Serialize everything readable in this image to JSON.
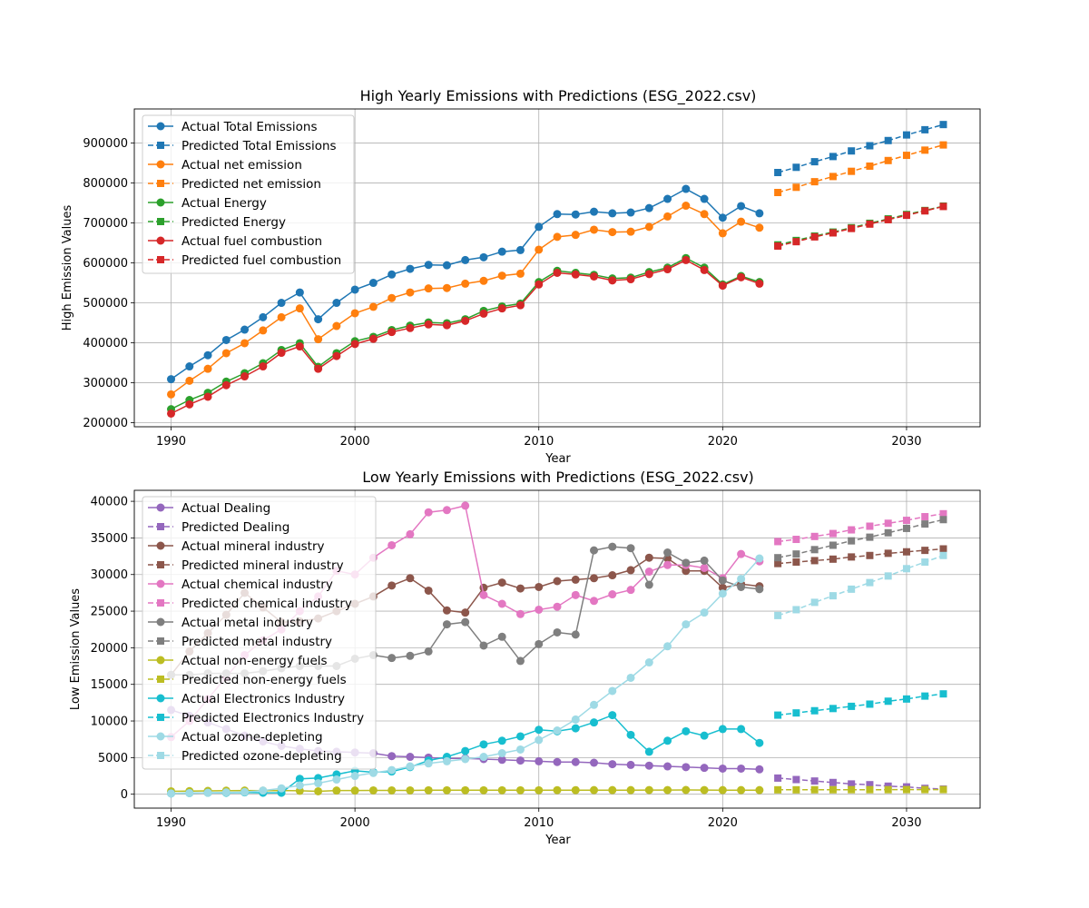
{
  "chart_data": [
    {
      "type": "line",
      "title": "High Yearly Emissions with Predictions (ESG_2022.csv)",
      "xlabel": "Year",
      "ylabel": "High Emission Values",
      "xlim": [
        1988,
        2034
      ],
      "ylim": [
        190000,
        985000
      ],
      "xticks": [
        1990,
        2000,
        2010,
        2020,
        2030
      ],
      "yticks": [
        200000,
        300000,
        400000,
        500000,
        600000,
        700000,
        800000,
        900000
      ],
      "grid": true,
      "legend": "top-left",
      "actual_x": [
        1990,
        1991,
        1992,
        1993,
        1994,
        1995,
        1996,
        1997,
        1998,
        1999,
        2000,
        2001,
        2002,
        2003,
        2004,
        2005,
        2006,
        2007,
        2008,
        2009,
        2010,
        2011,
        2012,
        2013,
        2014,
        2015,
        2016,
        2017,
        2018,
        2019,
        2020,
        2021,
        2022
      ],
      "predicted_x": [
        2023,
        2024,
        2025,
        2026,
        2027,
        2028,
        2029,
        2030,
        2031,
        2032
      ],
      "series": [
        {
          "name": "Total Emissions",
          "color": "#1f77b4",
          "actual": [
            309000,
            341000,
            369000,
            407000,
            433000,
            464000,
            500000,
            526000,
            459000,
            500000,
            533000,
            550000,
            571000,
            585000,
            595000,
            594000,
            607000,
            614000,
            628000,
            632000,
            690000,
            722000,
            721000,
            728000,
            724000,
            726000,
            737000,
            760000,
            785000,
            760000,
            713000,
            742000,
            724000
          ],
          "predicted": [
            826000,
            839000,
            853000,
            866000,
            880000,
            893000,
            906000,
            920000,
            933000,
            946000
          ]
        },
        {
          "name": "net emission",
          "color": "#ff7f0e",
          "actual": [
            271000,
            305000,
            335000,
            374000,
            399000,
            431000,
            464000,
            486000,
            409000,
            442000,
            474000,
            490000,
            512000,
            526000,
            536000,
            537000,
            548000,
            555000,
            568000,
            573000,
            633000,
            665000,
            670000,
            683000,
            677000,
            678000,
            690000,
            716000,
            743000,
            722000,
            674000,
            703000,
            688000
          ],
          "predicted": [
            776000,
            789000,
            803000,
            816000,
            829000,
            842000,
            856000,
            869000,
            882000,
            895000
          ]
        },
        {
          "name": "Energy",
          "color": "#2ca02c",
          "actual": [
            234000,
            257000,
            275000,
            303000,
            324000,
            349000,
            382000,
            399000,
            340000,
            374000,
            404000,
            415000,
            432000,
            443000,
            451000,
            449000,
            459000,
            480000,
            491000,
            498000,
            552000,
            580000,
            575000,
            570000,
            561000,
            563000,
            577000,
            588000,
            612000,
            588000,
            546000,
            567000,
            552000
          ],
          "predicted": [
            645000,
            656000,
            667000,
            677000,
            688000,
            699000,
            710000,
            721000,
            731000,
            742000
          ]
        },
        {
          "name": "fuel combustion",
          "color": "#d62728",
          "actual": [
            223000,
            246000,
            265000,
            294000,
            316000,
            341000,
            375000,
            391000,
            335000,
            367000,
            397000,
            410000,
            427000,
            437000,
            446000,
            444000,
            455000,
            473000,
            486000,
            494000,
            546000,
            575000,
            571000,
            566000,
            556000,
            559000,
            572000,
            584000,
            607000,
            582000,
            543000,
            564000,
            548000
          ],
          "predicted": [
            642000,
            653000,
            665000,
            675000,
            686000,
            697000,
            708000,
            719000,
            730000,
            741000
          ]
        }
      ],
      "legend_entries": [
        {
          "label": "Actual Total Emissions",
          "color": "#1f77b4",
          "style": "actual"
        },
        {
          "label": "Predicted Total Emissions",
          "color": "#1f77b4",
          "style": "predicted"
        },
        {
          "label": "Actual net emission",
          "color": "#ff7f0e",
          "style": "actual"
        },
        {
          "label": "Predicted net emission",
          "color": "#ff7f0e",
          "style": "predicted"
        },
        {
          "label": "Actual Energy",
          "color": "#2ca02c",
          "style": "actual"
        },
        {
          "label": "Predicted Energy",
          "color": "#2ca02c",
          "style": "predicted"
        },
        {
          "label": "Actual fuel combustion",
          "color": "#d62728",
          "style": "actual"
        },
        {
          "label": "Predicted fuel combustion",
          "color": "#d62728",
          "style": "predicted"
        }
      ]
    },
    {
      "type": "line",
      "title": "Low Yearly Emissions with Predictions (ESG_2022.csv)",
      "xlabel": "Year",
      "ylabel": "Low Emission Values",
      "xlim": [
        1988,
        2034
      ],
      "ylim": [
        -1900,
        41500
      ],
      "xticks": [
        1990,
        2000,
        2010,
        2020,
        2030
      ],
      "yticks": [
        0,
        5000,
        10000,
        15000,
        20000,
        25000,
        30000,
        35000,
        40000
      ],
      "grid": true,
      "legend": "top-left",
      "actual_x": [
        1990,
        1991,
        1992,
        1993,
        1994,
        1995,
        1996,
        1997,
        1998,
        1999,
        2000,
        2001,
        2002,
        2003,
        2004,
        2005,
        2006,
        2007,
        2008,
        2009,
        2010,
        2011,
        2012,
        2013,
        2014,
        2015,
        2016,
        2017,
        2018,
        2019,
        2020,
        2021,
        2022
      ],
      "predicted_x": [
        2023,
        2024,
        2025,
        2026,
        2027,
        2028,
        2029,
        2030,
        2031,
        2032
      ],
      "series": [
        {
          "name": "Dealing",
          "color": "#9467bd",
          "actual": [
            11500,
            10700,
            9800,
            8900,
            8000,
            7200,
            6600,
            6200,
            5900,
            5800,
            5700,
            5600,
            5200,
            5100,
            5000,
            4900,
            4900,
            4800,
            4700,
            4600,
            4500,
            4400,
            4400,
            4300,
            4100,
            4000,
            3900,
            3800,
            3700,
            3600,
            3500,
            3500,
            3400
          ],
          "predicted": [
            2200,
            2000,
            1800,
            1600,
            1400,
            1300,
            1100,
            1000,
            800,
            700
          ]
        },
        {
          "name": "mineral industry",
          "color": "#8c564b",
          "actual": [
            16300,
            19500,
            22000,
            24500,
            27500,
            25500,
            23500,
            23600,
            24000,
            25000,
            26000,
            27000,
            28500,
            29500,
            27800,
            25100,
            24800,
            28200,
            28900,
            28100,
            28300,
            29100,
            29300,
            29500,
            29900,
            30600,
            32300,
            32200,
            30500,
            30500,
            28200,
            28700,
            28400
          ],
          "predicted": [
            31500,
            31700,
            31900,
            32100,
            32400,
            32600,
            32900,
            33100,
            33300,
            33500
          ]
        },
        {
          "name": "chemical industry",
          "color": "#e377c2",
          "actual": [
            7800,
            10000,
            13000,
            16000,
            19000,
            21000,
            22500,
            25000,
            27000,
            30500,
            30000,
            32300,
            34000,
            35500,
            38500,
            38800,
            39400,
            27200,
            26000,
            24600,
            25200,
            25600,
            27200,
            26400,
            27300,
            27900,
            30400,
            31300,
            31300,
            30900,
            29500,
            32800,
            31800
          ],
          "predicted": [
            34500,
            34800,
            35200,
            35600,
            36100,
            36600,
            37000,
            37400,
            37900,
            38300
          ]
        },
        {
          "name": "metal industry",
          "color": "#7f7f7f",
          "actual": [
            16300,
            16300,
            16500,
            16500,
            16500,
            16800,
            17200,
            17500,
            17500,
            17500,
            18500,
            19000,
            18600,
            18900,
            19500,
            23200,
            23500,
            20300,
            21500,
            18200,
            20500,
            22100,
            21800,
            33300,
            33800,
            33600,
            28600,
            33000,
            31600,
            31900,
            29200,
            28300,
            28000
          ],
          "predicted": [
            32300,
            32800,
            33400,
            34000,
            34600,
            35100,
            35700,
            36300,
            36900,
            37500
          ]
        },
        {
          "name": "non-energy fuels",
          "color": "#bcbd22",
          "actual": [
            400,
            420,
            450,
            480,
            500,
            480,
            500,
            470,
            400,
            500,
            500,
            520,
            520,
            520,
            540,
            540,
            540,
            540,
            540,
            540,
            540,
            550,
            550,
            560,
            560,
            560,
            570,
            570,
            580,
            570,
            560,
            560,
            560
          ],
          "predicted": [
            600,
            600,
            610,
            610,
            620,
            620,
            620,
            630,
            630,
            630
          ]
        },
        {
          "name": "Electronics Industry",
          "color": "#17becf",
          "actual": [
            100,
            150,
            200,
            200,
            250,
            200,
            200,
            2100,
            2200,
            2700,
            3200,
            3000,
            3100,
            3700,
            4600,
            5100,
            5900,
            6800,
            7300,
            7900,
            8800,
            8600,
            9000,
            9800,
            10800,
            8100,
            5800,
            7300,
            8600,
            8000,
            8900,
            8900,
            7000
          ],
          "predicted": [
            10800,
            11100,
            11400,
            11700,
            12000,
            12300,
            12700,
            13000,
            13400,
            13700
          ]
        },
        {
          "name": "ozone-depleting",
          "color": "#9edae5",
          "actual": [
            100,
            150,
            200,
            250,
            300,
            500,
            800,
            1200,
            1500,
            2000,
            2500,
            2900,
            3300,
            3800,
            4200,
            4500,
            4800,
            5100,
            5600,
            6100,
            7400,
            8700,
            10200,
            12200,
            14100,
            15900,
            18000,
            20200,
            23200,
            24800,
            27400,
            29400,
            32200
          ],
          "predicted": [
            24400,
            25200,
            26200,
            27100,
            28000,
            28900,
            29800,
            30800,
            31700,
            32600
          ]
        }
      ],
      "legend_entries": [
        {
          "label": "Actual Dealing",
          "color": "#9467bd",
          "style": "actual"
        },
        {
          "label": "Predicted Dealing",
          "color": "#9467bd",
          "style": "predicted"
        },
        {
          "label": "Actual mineral industry",
          "color": "#8c564b",
          "style": "actual"
        },
        {
          "label": "Predicted mineral industry",
          "color": "#8c564b",
          "style": "predicted"
        },
        {
          "label": "Actual chemical industry",
          "color": "#e377c2",
          "style": "actual"
        },
        {
          "label": "Predicted chemical industry",
          "color": "#e377c2",
          "style": "predicted"
        },
        {
          "label": "Actual metal industry",
          "color": "#7f7f7f",
          "style": "actual"
        },
        {
          "label": "Predicted metal industry",
          "color": "#7f7f7f",
          "style": "predicted"
        },
        {
          "label": "Actual non-energy fuels",
          "color": "#bcbd22",
          "style": "actual"
        },
        {
          "label": "Predicted non-energy fuels",
          "color": "#bcbd22",
          "style": "predicted"
        },
        {
          "label": "Actual Electronics Industry",
          "color": "#17becf",
          "style": "actual"
        },
        {
          "label": "Predicted Electronics Industry",
          "color": "#17becf",
          "style": "predicted"
        },
        {
          "label": "Actual ozone-depleting",
          "color": "#9edae5",
          "style": "actual"
        },
        {
          "label": "Predicted ozone-depleting",
          "color": "#9edae5",
          "style": "predicted"
        }
      ]
    }
  ]
}
